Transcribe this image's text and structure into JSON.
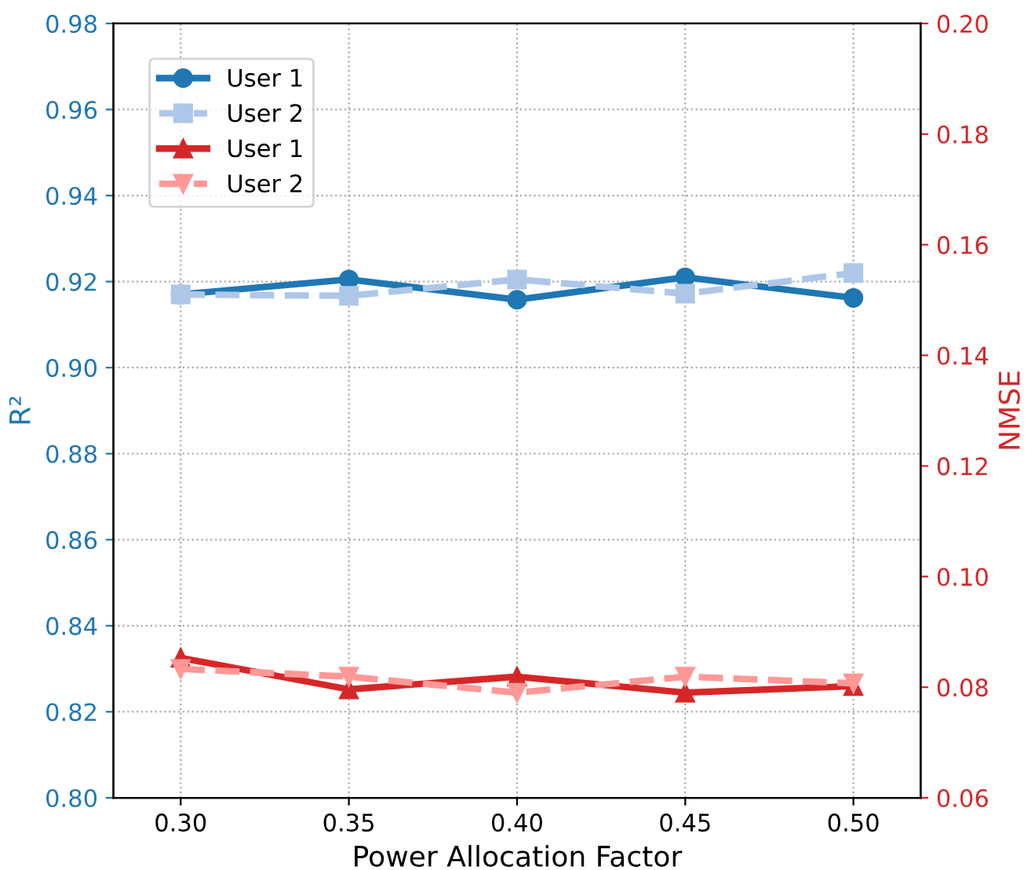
{
  "chart_data": {
    "type": "line",
    "xlabel": "Power Allocation Factor",
    "ylabel": "R²",
    "y2label": "NMSE",
    "x": [
      0.3,
      0.35,
      0.4,
      0.45,
      0.5
    ],
    "series": [
      {
        "name": "User 1",
        "color": "#1f77b4",
        "values": [
          0.917,
          0.9205,
          0.9158,
          0.921,
          0.9162
        ],
        "marker": "circle",
        "line_style": "solid"
      },
      {
        "name": "User 2",
        "color": "#aec7e8",
        "values": [
          0.917,
          0.9167,
          0.9205,
          0.9172,
          0.922
        ],
        "marker": "square",
        "line_style": "dashed"
      },
      {
        "name": "User 1",
        "color": "#d62728",
        "values": [
          0.0853,
          0.0796,
          0.0819,
          0.079,
          0.0802
        ],
        "marker": "triangle",
        "line_style": "solid",
        "axis": "y2"
      },
      {
        "name": "User 2",
        "color": "#ff9896",
        "values": [
          0.0833,
          0.0819,
          0.079,
          0.0819,
          0.0807
        ],
        "marker": "triangle_down",
        "line_style": "dashed",
        "axis": "y2"
      }
    ],
    "xlim": [
      0.28,
      0.52
    ],
    "xticks": [
      {
        "value": 0.3,
        "label": "0.30"
      },
      {
        "value": 0.35,
        "label": "0.35"
      },
      {
        "value": 0.4,
        "label": "0.40"
      },
      {
        "value": 0.45,
        "label": "0.45"
      },
      {
        "value": 0.5,
        "label": "0.50"
      }
    ],
    "ylim": [
      0.8,
      0.98
    ],
    "yticks": [
      {
        "value": 0.8,
        "label": "0.80"
      },
      {
        "value": 0.82,
        "label": "0.82"
      },
      {
        "value": 0.84,
        "label": "0.84"
      },
      {
        "value": 0.86,
        "label": "0.86"
      },
      {
        "value": 0.88,
        "label": "0.88"
      },
      {
        "value": 0.9,
        "label": "0.90"
      },
      {
        "value": 0.92,
        "label": "0.92"
      },
      {
        "value": 0.94,
        "label": "0.94"
      },
      {
        "value": 0.96,
        "label": "0.96"
      },
      {
        "value": 0.98,
        "label": "0.98"
      }
    ],
    "y2lim": [
      0.06,
      0.2
    ],
    "y2ticks": [
      0.06,
      0.08,
      {
        "value": 0.1,
        "label": "0.10"
      },
      0.12,
      0.14,
      0.16,
      0.18,
      {
        "value": 0.2,
        "label": "0.20"
      }
    ],
    "grid": true,
    "legend": "top left"
  }
}
